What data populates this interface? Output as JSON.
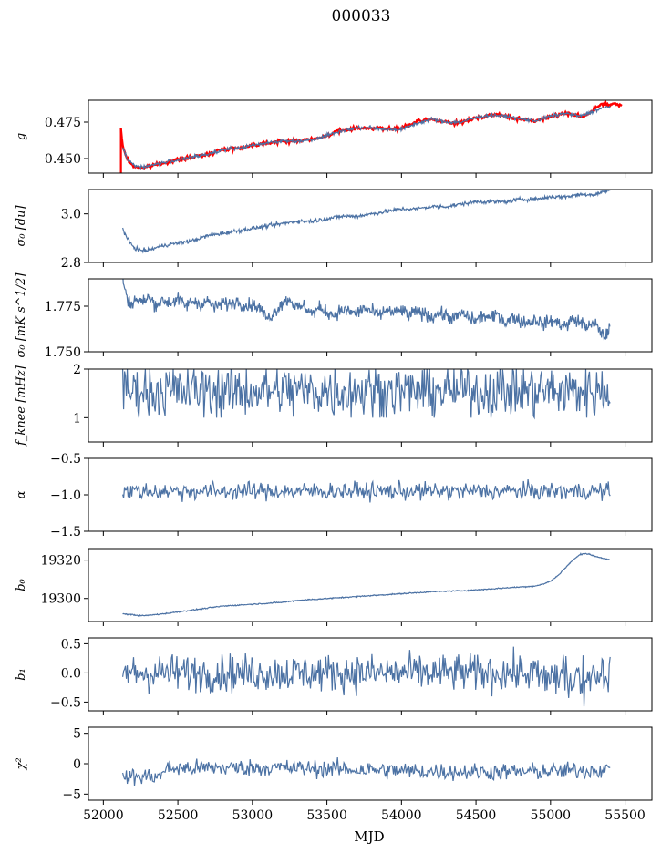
{
  "figure": {
    "title": "000033",
    "xlabel": "MJD"
  },
  "chart_data": [
    {
      "type": "line",
      "ylabel": "g",
      "ylim": [
        0.44,
        0.49
      ],
      "yticks": [
        0.45,
        0.475
      ],
      "yticklabels": [
        "0.450",
        "0.475"
      ],
      "series": [
        {
          "color": "#ff0000",
          "x": [
            52118,
            52125,
            52140,
            52160,
            52180,
            52200,
            52230,
            52260,
            52290,
            52320,
            52350,
            52400,
            52450,
            52500,
            52550,
            52600,
            52650,
            52700,
            52750,
            52800,
            52850,
            52900,
            52950,
            53000,
            53050,
            53100,
            53150,
            53200,
            53250,
            53300,
            53350,
            53400,
            53450,
            53500,
            53550,
            53600,
            53650,
            53700,
            53750,
            53800,
            53850,
            53900,
            53950,
            54000,
            54050,
            54100,
            54150,
            54200,
            54250,
            54300,
            54350,
            54400,
            54450,
            54500,
            54550,
            54600,
            54650,
            54700,
            54750,
            54800,
            54850,
            54900,
            54950,
            55000,
            55050,
            55100,
            55130,
            55160,
            55200,
            55250,
            55280,
            55300,
            55350,
            55400,
            55450,
            55480
          ],
          "values": [
            0.47,
            0.462,
            0.455,
            0.45,
            0.447,
            0.445,
            0.444,
            0.444,
            0.444,
            0.445,
            0.446,
            0.447,
            0.448,
            0.449,
            0.45,
            0.451,
            0.452,
            0.453,
            0.455,
            0.456,
            0.457,
            0.457,
            0.458,
            0.459,
            0.46,
            0.461,
            0.461,
            0.462,
            0.462,
            0.462,
            0.463,
            0.463,
            0.464,
            0.466,
            0.468,
            0.469,
            0.47,
            0.471,
            0.471,
            0.471,
            0.471,
            0.47,
            0.47,
            0.471,
            0.473,
            0.475,
            0.476,
            0.477,
            0.476,
            0.475,
            0.474,
            0.475,
            0.476,
            0.478,
            0.479,
            0.48,
            0.48,
            0.479,
            0.478,
            0.477,
            0.476,
            0.476,
            0.477,
            0.479,
            0.48,
            0.481,
            0.481,
            0.48,
            0.479,
            0.48,
            0.483,
            0.485,
            0.487,
            0.487,
            0.487,
            0.486
          ]
        },
        {
          "color": "#4c72a4",
          "x": [
            52130,
            52160,
            52200,
            52250,
            52300,
            52350,
            52400,
            52500,
            52600,
            52700,
            52800,
            52900,
            53000,
            53100,
            53200,
            53300,
            53400,
            53500,
            53600,
            53700,
            53800,
            53900,
            54000,
            54100,
            54200,
            54300,
            54400,
            54500,
            54600,
            54700,
            54800,
            54900,
            55000,
            55100,
            55200,
            55300,
            55400
          ],
          "values": [
            0.458,
            0.45,
            0.446,
            0.444,
            0.445,
            0.446,
            0.447,
            0.449,
            0.451,
            0.453,
            0.456,
            0.457,
            0.459,
            0.461,
            0.462,
            0.462,
            0.463,
            0.466,
            0.469,
            0.471,
            0.471,
            0.47,
            0.47,
            0.474,
            0.477,
            0.475,
            0.475,
            0.478,
            0.48,
            0.479,
            0.477,
            0.476,
            0.479,
            0.481,
            0.479,
            0.483,
            0.486
          ]
        }
      ]
    },
    {
      "type": "line",
      "ylabel": "σ₀ [du]",
      "ylim": [
        2.8,
        3.1
      ],
      "yticks": [
        2.8,
        3.0
      ],
      "yticklabels": [
        "2.8",
        "3.0"
      ],
      "series": [
        {
          "color": "#4c72a4",
          "x": [
            52130,
            52150,
            52180,
            52210,
            52250,
            52300,
            52350,
            52400,
            52500,
            52600,
            52700,
            52800,
            52900,
            53000,
            53100,
            53200,
            53300,
            53400,
            53500,
            53600,
            53700,
            53800,
            53900,
            54000,
            54100,
            54200,
            54300,
            54400,
            54500,
            54600,
            54700,
            54800,
            54900,
            55000,
            55100,
            55200,
            55300,
            55400
          ],
          "values": [
            2.94,
            2.91,
            2.88,
            2.86,
            2.85,
            2.85,
            2.86,
            2.87,
            2.88,
            2.89,
            2.91,
            2.92,
            2.93,
            2.94,
            2.95,
            2.96,
            2.97,
            2.97,
            2.98,
            2.99,
            2.99,
            3.0,
            3.01,
            3.02,
            3.02,
            3.03,
            3.03,
            3.04,
            3.05,
            3.05,
            3.05,
            3.06,
            3.06,
            3.07,
            3.07,
            3.08,
            3.08,
            3.1
          ]
        }
      ]
    },
    {
      "type": "line",
      "ylabel": "σ₀ [mK s^1/2]",
      "ylim": [
        1.75,
        1.79
      ],
      "yticks": [
        1.75,
        1.775
      ],
      "yticklabels": [
        "1.750",
        "1.775"
      ],
      "series": [
        {
          "color": "#4c72a4",
          "x": [
            52130,
            52150,
            52180,
            52220,
            52260,
            52300,
            52350,
            52400,
            52450,
            52500,
            52550,
            52600,
            52650,
            52700,
            52750,
            52800,
            52850,
            52900,
            52950,
            53000,
            53050,
            53100,
            53150,
            53200,
            53250,
            53300,
            53350,
            53400,
            53450,
            53500,
            53550,
            53600,
            53650,
            53700,
            53750,
            53800,
            53850,
            53900,
            53950,
            54000,
            54050,
            54100,
            54150,
            54200,
            54250,
            54300,
            54350,
            54400,
            54450,
            54500,
            54550,
            54600,
            54650,
            54700,
            54750,
            54800,
            54850,
            54900,
            54950,
            55000,
            55050,
            55100,
            55150,
            55200,
            55250,
            55300,
            55330,
            55360,
            55380,
            55400
          ],
          "values": [
            1.79,
            1.782,
            1.776,
            1.779,
            1.777,
            1.78,
            1.776,
            1.778,
            1.777,
            1.779,
            1.775,
            1.778,
            1.776,
            1.778,
            1.774,
            1.777,
            1.776,
            1.778,
            1.775,
            1.776,
            1.774,
            1.768,
            1.772,
            1.777,
            1.779,
            1.774,
            1.775,
            1.771,
            1.774,
            1.772,
            1.77,
            1.773,
            1.772,
            1.771,
            1.774,
            1.772,
            1.77,
            1.773,
            1.771,
            1.773,
            1.77,
            1.772,
            1.771,
            1.769,
            1.771,
            1.77,
            1.768,
            1.771,
            1.769,
            1.767,
            1.77,
            1.768,
            1.771,
            1.766,
            1.769,
            1.767,
            1.766,
            1.768,
            1.765,
            1.767,
            1.766,
            1.764,
            1.768,
            1.766,
            1.764,
            1.765,
            1.762,
            1.758,
            1.76,
            1.766
          ]
        }
      ]
    },
    {
      "type": "line",
      "ylabel": "f_knee [mHz]",
      "ylim": [
        0.5,
        2.0
      ],
      "yticks": [
        1,
        2
      ],
      "yticklabels": [
        "1",
        "2"
      ],
      "series": [
        {
          "color": "#4c72a4",
          "x_start": 52130,
          "x_end": 55400,
          "baseline": 1.55,
          "noise": 0.28,
          "spike_max": 2.0,
          "spike_min": 1.0
        }
      ]
    },
    {
      "type": "line",
      "ylabel": "α",
      "ylim": [
        -1.5,
        -0.5
      ],
      "yticks": [
        -1.5,
        -1.0,
        -0.5
      ],
      "yticklabels": [
        "−1.5",
        "−1.0",
        "−0.5"
      ],
      "series": [
        {
          "color": "#4c72a4",
          "x_start": 52130,
          "x_end": 55400,
          "baseline": -0.95,
          "noise": 0.06,
          "spike_max": -0.78,
          "spike_min": -1.15
        }
      ]
    },
    {
      "type": "line",
      "ylabel": "b₀",
      "ylim": [
        19288,
        19326
      ],
      "yticks": [
        19300,
        19320
      ],
      "yticklabels": [
        "19300",
        "19320"
      ],
      "series": [
        {
          "color": "#4c72a4",
          "x": [
            52130,
            52200,
            52250,
            52300,
            52400,
            52500,
            52600,
            52700,
            52800,
            52900,
            53000,
            53100,
            53200,
            53300,
            53400,
            53500,
            53600,
            53700,
            53800,
            53900,
            54000,
            54100,
            54200,
            54300,
            54400,
            54500,
            54600,
            54700,
            54800,
            54900,
            54950,
            55000,
            55050,
            55100,
            55150,
            55200,
            55230,
            55260,
            55300,
            55350,
            55400
          ],
          "values": [
            19292,
            19291.5,
            19291,
            19291.2,
            19292,
            19293,
            19294,
            19295,
            19296,
            19296.5,
            19297,
            19297.5,
            19298,
            19299,
            19299.5,
            19300,
            19300.5,
            19301,
            19301.5,
            19302,
            19302.5,
            19303,
            19303.5,
            19303.8,
            19304,
            19304.5,
            19305,
            19305.5,
            19306,
            19306.5,
            19307.5,
            19309,
            19312,
            19316,
            19320,
            19323,
            19323.5,
            19323,
            19322,
            19321,
            19320
          ]
        }
      ]
    },
    {
      "type": "line",
      "ylabel": "b₁",
      "ylim": [
        -0.65,
        0.6
      ],
      "yticks": [
        -0.5,
        0.0,
        0.5
      ],
      "yticklabels": [
        "−0.5",
        "0.0",
        "0.5"
      ],
      "series": [
        {
          "color": "#4c72a4",
          "x_start": 52130,
          "x_end": 55400,
          "baseline": 0.0,
          "noise": 0.16,
          "spike_max": 0.55,
          "spike_min": -0.58
        }
      ]
    },
    {
      "type": "line",
      "ylabel": "χ²",
      "ylim": [
        -6,
        6
      ],
      "yticks": [
        -5,
        0,
        5
      ],
      "yticklabels": [
        "−5",
        "0",
        "5"
      ],
      "series": [
        {
          "color": "#4c72a4",
          "x_start": 52130,
          "x_end": 55400,
          "baseline": -1.0,
          "noise": 0.7,
          "spike_max": 1.8,
          "spike_min": -4.2
        }
      ]
    }
  ],
  "xaxis": {
    "xlim": [
      51900,
      55680
    ],
    "xticks": [
      52000,
      52500,
      53000,
      53500,
      54000,
      54500,
      55000,
      55500
    ],
    "xticklabels": [
      "52000",
      "52500",
      "53000",
      "53500",
      "54000",
      "54500",
      "55000",
      "55500"
    ]
  }
}
